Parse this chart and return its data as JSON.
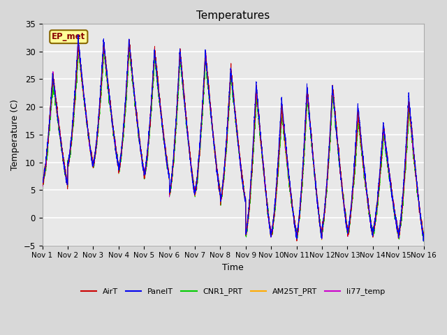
{
  "title": "Temperatures",
  "xlabel": "Time",
  "ylabel": "Temperature (C)",
  "ylim": [
    -5,
    35
  ],
  "xlim": [
    0,
    15
  ],
  "xtick_labels": [
    "Nov 1",
    "Nov 2",
    "Nov 3",
    "Nov 4",
    "Nov 5",
    "Nov 6",
    "Nov 7",
    "Nov 8",
    "Nov 9",
    "Nov 10",
    "Nov 11",
    "Nov 12",
    "Nov 13",
    "Nov 14",
    "Nov 15",
    "Nov 16"
  ],
  "xtick_positions": [
    0,
    1,
    2,
    3,
    4,
    5,
    6,
    7,
    8,
    9,
    10,
    11,
    12,
    13,
    14,
    15
  ],
  "background_color": "#e8e8e8",
  "plot_bg_color": "#e8e8e8",
  "fig_bg_color": "#d8d8d8",
  "grid_color": "#ffffff",
  "series_colors": [
    "#cc0000",
    "#0000ee",
    "#00cc00",
    "#ffaa00",
    "#cc00cc"
  ],
  "series_names": [
    "AirT",
    "PanelT",
    "CNR1_PRT",
    "AM25T_PRT",
    "li77_temp"
  ],
  "legend_text": "EP_met",
  "legend_box_color": "#ffff99",
  "legend_box_edge": "#886600",
  "n_points_per_day": 288,
  "num_days": 15,
  "day_maxes": [
    26.0,
    31.5,
    31.5,
    31.7,
    30.3,
    30.3,
    29.9,
    27.0,
    23.5,
    20.0,
    23.3,
    23.8,
    19.0,
    16.5,
    20.8
  ],
  "day_mins": [
    6.0,
    9.5,
    9.5,
    8.5,
    7.5,
    4.5,
    4.5,
    3.0,
    -3.0,
    -3.0,
    -3.5,
    -2.0,
    -3.0,
    -2.5,
    -3.5
  ],
  "panel_boost": [
    0,
    1.0,
    0.5,
    0.5,
    0.0,
    0.0,
    0.0,
    0.0,
    1.0,
    1.5,
    0.5,
    0.0,
    1.5,
    0.5,
    1.5
  ]
}
